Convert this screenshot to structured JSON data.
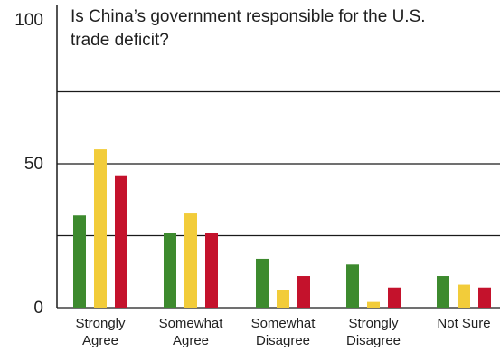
{
  "chart_data": {
    "type": "bar",
    "title_lines": [
      "Is China’s government responsible for the U.S.",
      "trade deficit?"
    ],
    "categories": [
      [
        "Strongly",
        "Agree"
      ],
      [
        "Somewhat",
        "Agree"
      ],
      [
        "Somewhat",
        "Disagree"
      ],
      [
        "Strongly",
        "Disagree"
      ],
      [
        "Not Sure"
      ]
    ],
    "series": [
      {
        "color": "#3d8a2e",
        "values": [
          32,
          26,
          17,
          15,
          11
        ]
      },
      {
        "color": "#f2cc3a",
        "values": [
          55,
          33,
          6,
          2,
          8
        ]
      },
      {
        "color": "#c4122c",
        "values": [
          46,
          26,
          11,
          7,
          7
        ]
      }
    ],
    "ylim": [
      0,
      100
    ],
    "yticks": [
      100,
      50,
      0
    ],
    "gridlines": [
      75,
      50,
      25
    ],
    "xlabel": "",
    "ylabel": "",
    "legend": "none",
    "grid": true
  }
}
